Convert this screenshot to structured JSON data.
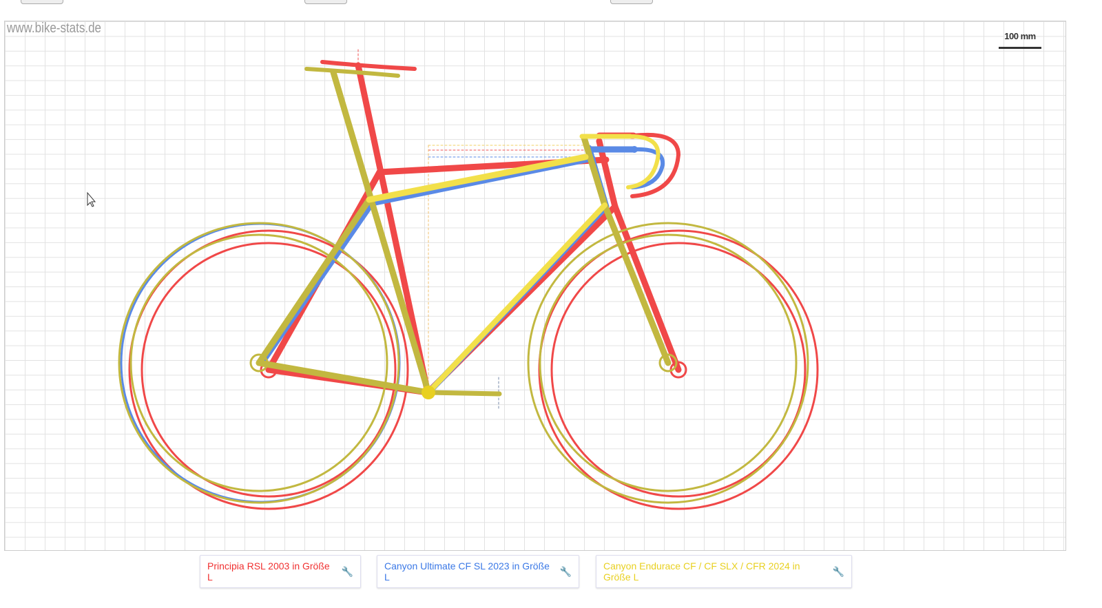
{
  "watermark": "www.bike-stats.de",
  "scale_label": "100 mm",
  "colors": {
    "red": "#f04848",
    "blue": "#5a8ae6",
    "olive": "#c2b840",
    "yellow": "#f2e04a"
  },
  "legend": [
    {
      "label": "Principia RSL 2003 in Größe L",
      "color": "#f03030",
      "icon": "wrench-icon"
    },
    {
      "label": "Canyon Ultimate CF SL 2023 in Größe L",
      "color": "#3a78e6",
      "icon": "wrench-icon"
    },
    {
      "label": "Canyon Endurace CF / CF SLX / CFR 2024 in Größe L",
      "color": "#e8d020",
      "icon": "wrench-icon"
    }
  ]
}
